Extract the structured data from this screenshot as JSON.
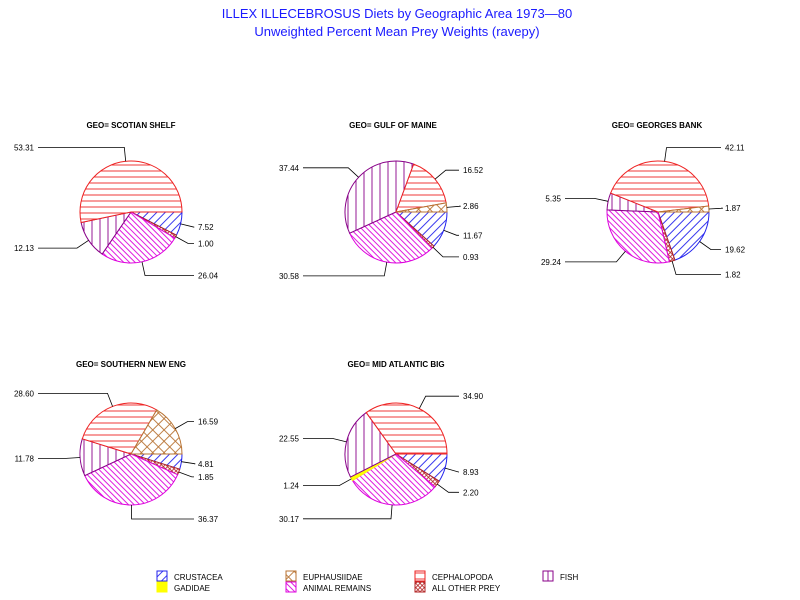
{
  "title": "ILLEX ILLECEBROSUS Diets by Geographic Area 1973—80",
  "subtitle": "Unweighted Percent Mean Prey Weights (ravepy)",
  "categories": [
    {
      "name": "CRUSTACEA",
      "color": "#2222ee",
      "pattern": "hatch-diag-up"
    },
    {
      "name": "GADIDAE",
      "color": "#ffff00",
      "pattern": "solid"
    },
    {
      "name": "EUPHAUSIIDAE",
      "color": "#b87333",
      "pattern": "crosshatch-diag"
    },
    {
      "name": "ANIMAL REMAINS",
      "color": "#dd00dd",
      "pattern": "hatch-diag-down"
    },
    {
      "name": "CEPHALOPODA",
      "color": "#ee2222",
      "pattern": "hatch-horizontal"
    },
    {
      "name": "ALL OTHER PREY",
      "color": "#b22222",
      "pattern": "crosshatch-fine"
    },
    {
      "name": "FISH",
      "color": "#880088",
      "pattern": "hatch-vertical"
    }
  ],
  "chart_data": [
    {
      "type": "pie",
      "title": "GEO= SCOTIAN SHELF",
      "slices": [
        {
          "category": "CRUSTACEA",
          "value": 7.52,
          "label": "7.52"
        },
        {
          "category": "ALL OTHER PREY",
          "value": 1.0,
          "label": "1.00"
        },
        {
          "category": "ANIMAL REMAINS",
          "value": 26.04,
          "label": "26.04"
        },
        {
          "category": "FISH",
          "value": 12.13,
          "label": "12.13"
        },
        {
          "category": "CEPHALOPODA",
          "value": 53.31,
          "label": "53.31"
        }
      ]
    },
    {
      "type": "pie",
      "title": "GEO= GULF OF MAINE",
      "slices": [
        {
          "category": "CRUSTACEA",
          "value": 11.67,
          "label": "11.67"
        },
        {
          "category": "ALL OTHER PREY",
          "value": 0.93,
          "label": "0.93"
        },
        {
          "category": "ANIMAL REMAINS",
          "value": 30.58,
          "label": "30.58"
        },
        {
          "category": "FISH",
          "value": 37.44,
          "label": "37.44"
        },
        {
          "category": "CEPHALOPODA",
          "value": 16.52,
          "label": "16.52"
        },
        {
          "category": "EUPHAUSIIDAE",
          "value": 2.86,
          "label": "2.86"
        }
      ]
    },
    {
      "type": "pie",
      "title": "GEO= GEORGES BANK",
      "slices": [
        {
          "category": "CRUSTACEA",
          "value": 19.62,
          "label": "19.62"
        },
        {
          "category": "ALL OTHER PREY",
          "value": 1.82,
          "label": "1.82"
        },
        {
          "category": "ANIMAL REMAINS",
          "value": 29.24,
          "label": "29.24"
        },
        {
          "category": "FISH",
          "value": 5.35,
          "label": "5.35"
        },
        {
          "category": "CEPHALOPODA",
          "value": 42.11,
          "label": "42.11"
        },
        {
          "category": "EUPHAUSIIDAE",
          "value": 1.87,
          "label": "1.87"
        }
      ]
    },
    {
      "type": "pie",
      "title": "GEO= SOUTHERN NEW ENG",
      "slices": [
        {
          "category": "CRUSTACEA",
          "value": 4.81,
          "label": "4.81"
        },
        {
          "category": "ALL OTHER PREY",
          "value": 1.85,
          "label": "1.85"
        },
        {
          "category": "ANIMAL REMAINS",
          "value": 36.37,
          "label": "36.37"
        },
        {
          "category": "FISH",
          "value": 11.78,
          "label": "11.78"
        },
        {
          "category": "CEPHALOPODA",
          "value": 28.6,
          "label": "28.60"
        },
        {
          "category": "EUPHAUSIIDAE",
          "value": 16.59,
          "label": "16.59"
        }
      ]
    },
    {
      "type": "pie",
      "title": "GEO= MID ATLANTIC BIG",
      "slices": [
        {
          "category": "CRUSTACEA",
          "value": 8.93,
          "label": "8.93"
        },
        {
          "category": "ALL OTHER PREY",
          "value": 2.2,
          "label": "2.20"
        },
        {
          "category": "ANIMAL REMAINS",
          "value": 30.17,
          "label": "30.17"
        },
        {
          "category": "GADIDAE",
          "value": 1.24,
          "label": "1.24"
        },
        {
          "category": "FISH",
          "value": 22.55,
          "label": "22.55"
        },
        {
          "category": "CEPHALOPODA",
          "value": 34.9,
          "label": "34.90"
        }
      ]
    }
  ],
  "legend": {
    "entries": [
      "CRUSTACEA",
      "EUPHAUSIIDAE",
      "CEPHALOPODA",
      "FISH",
      "GADIDAE",
      "ANIMAL REMAINS",
      "ALL OTHER PREY"
    ]
  }
}
